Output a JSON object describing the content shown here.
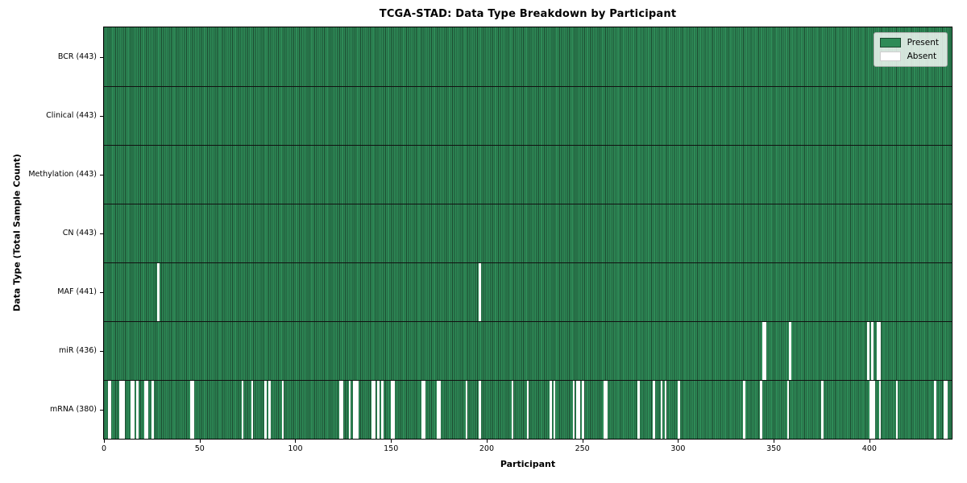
{
  "chart_data": {
    "type": "heatmap",
    "title": "TCGA-STAD: Data Type Breakdown by Participant",
    "xlabel": "Participant",
    "ylabel": "Data Type (Total Sample Count)",
    "n_participants": 443,
    "x_ticks": [
      0,
      50,
      100,
      150,
      200,
      250,
      300,
      350,
      400
    ],
    "legend_position": "upper right",
    "grid": false,
    "legend": [
      {
        "label": "Present",
        "color": "#2e8b57"
      },
      {
        "label": "Absent",
        "color": "#ffffff"
      }
    ],
    "colors": {
      "present": "#2e8b57",
      "absent": "#ffffff",
      "bar_edge": "#1c4a30",
      "row_separator": "#111111",
      "legend_bg": "rgba(255,255,255,0.8)",
      "legend_border": "#b3b3b3"
    },
    "rows": [
      {
        "name": "bcr",
        "label": "BCR (443)",
        "present_count": 443,
        "absent": []
      },
      {
        "name": "clinical",
        "label": "Clinical (443)",
        "present_count": 443,
        "absent": []
      },
      {
        "name": "methylation",
        "label": "Methylation (443)",
        "present_count": 443,
        "absent": []
      },
      {
        "name": "cn",
        "label": "CN (443)",
        "present_count": 443,
        "absent": []
      },
      {
        "name": "maf",
        "label": "MAF (441)",
        "present_count": 441,
        "absent": [
          28,
          196
        ]
      },
      {
        "name": "mir",
        "label": "miR (436)",
        "present_count": 436,
        "absent": [
          344,
          345,
          358,
          399,
          401,
          404,
          405
        ]
      },
      {
        "name": "mrna",
        "label": "mRNA (380)",
        "present_count": 380,
        "absent": [
          2,
          3,
          8,
          9,
          10,
          14,
          15,
          17,
          21,
          22,
          25,
          45,
          46,
          72,
          77,
          84,
          86,
          93,
          123,
          124,
          128,
          130,
          131,
          132,
          140,
          141,
          143,
          145,
          150,
          151,
          166,
          167,
          174,
          175,
          189,
          196,
          213,
          221,
          233,
          235,
          245,
          247,
          248,
          250,
          261,
          262,
          279,
          287,
          291,
          293,
          300,
          334,
          343,
          357,
          375,
          400,
          401,
          402,
          405,
          414,
          434,
          439,
          440
        ]
      }
    ]
  }
}
